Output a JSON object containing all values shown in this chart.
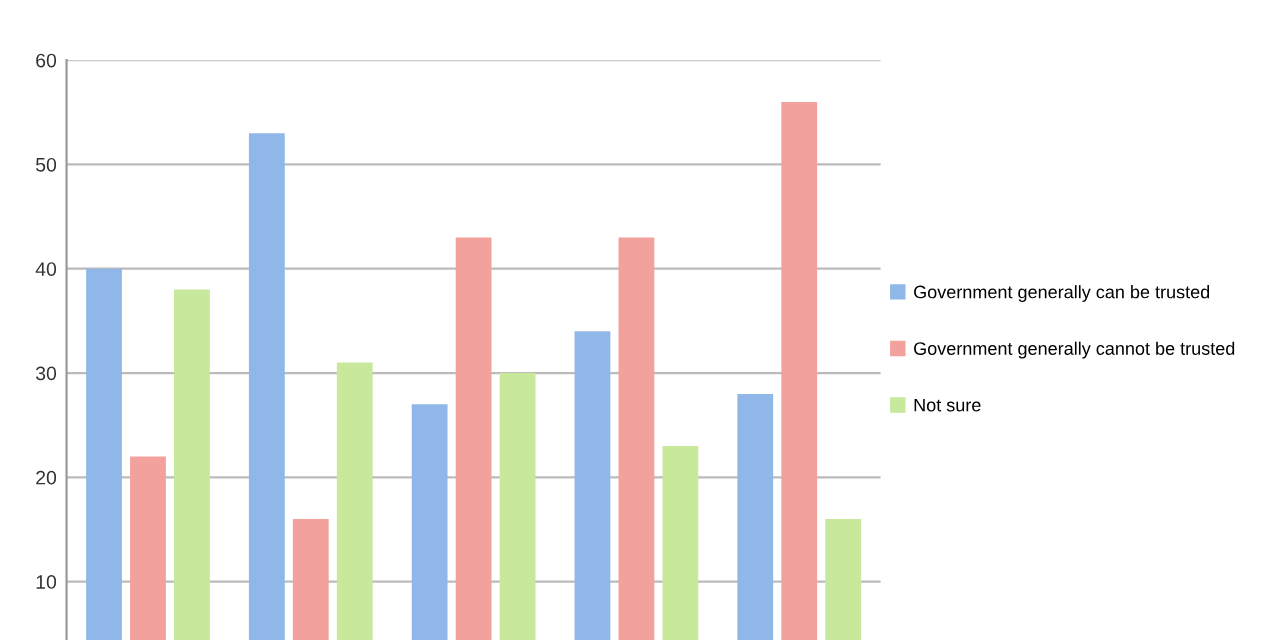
{
  "chart_data": {
    "type": "bar",
    "categories": [
      null,
      null,
      null,
      null,
      null
    ],
    "series": [
      {
        "name": "Government generally can be trusted",
        "color": "#8fb8e8",
        "values": [
          40,
          53,
          27,
          34,
          28
        ]
      },
      {
        "name": "Government generally cannot be trusted",
        "color": "#f2a19d",
        "values": [
          22,
          16,
          43,
          43,
          56
        ]
      },
      {
        "name": "Not sure",
        "color": "#c8e89c",
        "values": [
          38,
          31,
          30,
          23,
          16
        ]
      }
    ],
    "ylim": [
      4.4,
      60
    ],
    "yticks": [
      10,
      20,
      30,
      40,
      50,
      60
    ],
    "grid": "y",
    "legend": "right"
  }
}
